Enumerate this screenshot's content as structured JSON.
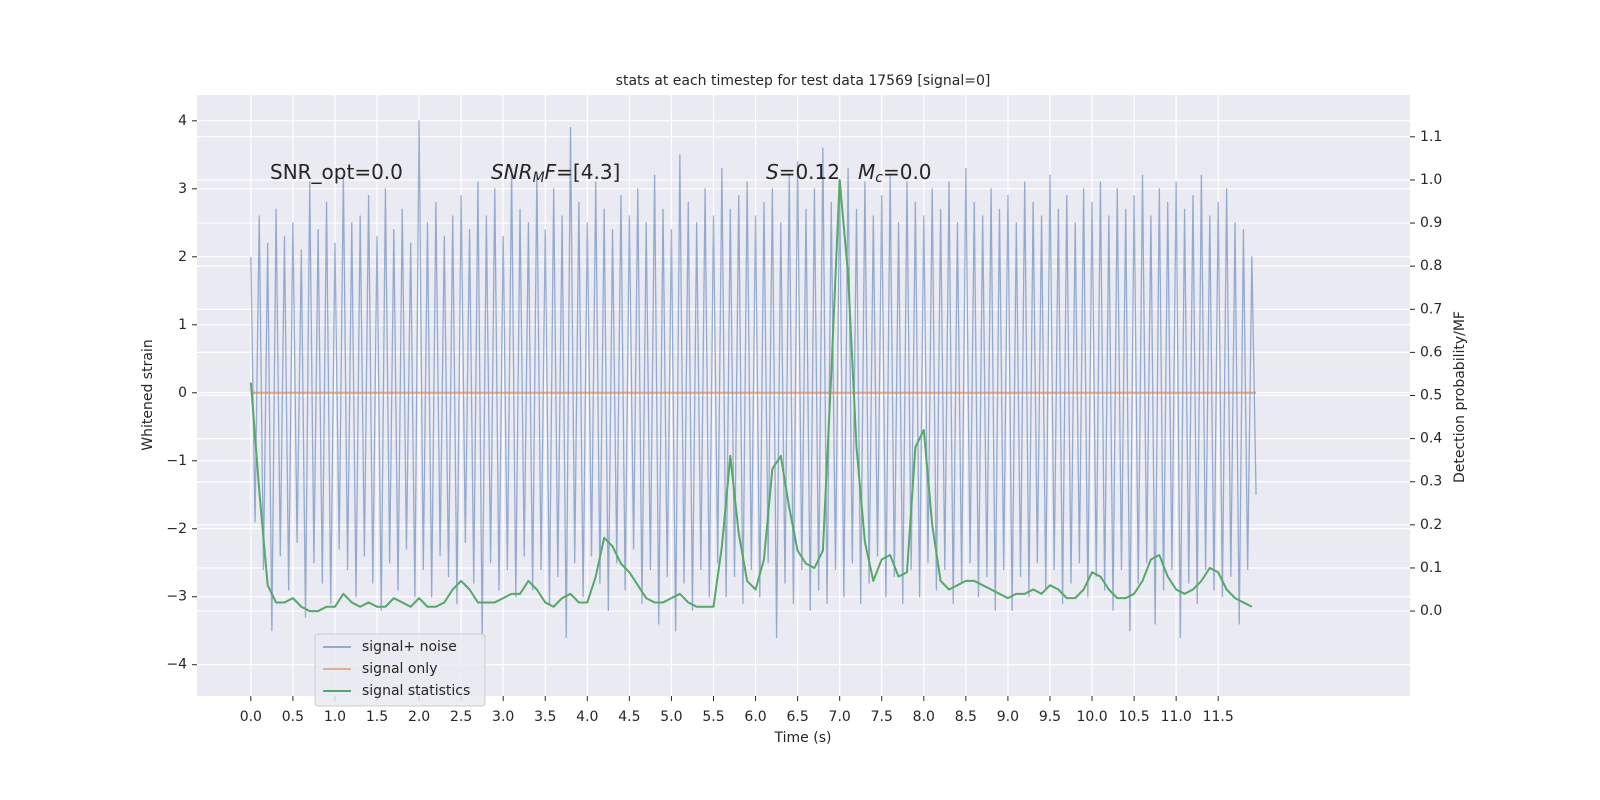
{
  "chart_data": {
    "type": "line",
    "title": "stats at each timestep for test data 17569 [signal=0]",
    "xlabel": "Time (s)",
    "ylabel": "Whitened strain",
    "y2label": "Detection probability/MF",
    "xlim": [
      -0.64,
      13.78
    ],
    "ylim": [
      -4.46,
      4.38
    ],
    "y2lim": [
      -0.197,
      1.197
    ],
    "xticks": [
      {
        "value": 0,
        "label": "0.0"
      },
      {
        "value": 0.5,
        "label": "0.5"
      },
      {
        "value": 1,
        "label": "1.0"
      },
      {
        "value": 1.5,
        "label": "1.5"
      },
      {
        "value": 2,
        "label": "2.0"
      },
      {
        "value": 2.5,
        "label": "2.5"
      },
      {
        "value": 3,
        "label": "3.0"
      },
      {
        "value": 3.5,
        "label": "3.5"
      },
      {
        "value": 4,
        "label": "4.0"
      },
      {
        "value": 4.5,
        "label": "4.5"
      },
      {
        "value": 5,
        "label": "5.0"
      },
      {
        "value": 5.5,
        "label": "5.5"
      },
      {
        "value": 6,
        "label": "6.0"
      },
      {
        "value": 6.5,
        "label": "6.5"
      },
      {
        "value": 7,
        "label": "7.0"
      },
      {
        "value": 7.5,
        "label": "7.5"
      },
      {
        "value": 8,
        "label": "8.0"
      },
      {
        "value": 8.5,
        "label": "8.5"
      },
      {
        "value": 9,
        "label": "9.0"
      },
      {
        "value": 9.5,
        "label": "9.5"
      },
      {
        "value": 10,
        "label": "10.0"
      },
      {
        "value": 10.5,
        "label": "10.5"
      },
      {
        "value": 11,
        "label": "11.0"
      },
      {
        "value": 11.5,
        "label": "11.5"
      }
    ],
    "yticks": [
      {
        "value": -4,
        "label": "−4"
      },
      {
        "value": -3,
        "label": "−3"
      },
      {
        "value": -2,
        "label": "−2"
      },
      {
        "value": -1,
        "label": "−1"
      },
      0,
      1,
      2,
      3,
      4
    ],
    "y2ticks": [
      {
        "value": 0,
        "label": "0.0"
      },
      {
        "value": 0.1,
        "label": "0.1"
      },
      {
        "value": 0.2,
        "label": "0.2"
      },
      {
        "value": 0.3,
        "label": "0.3"
      },
      {
        "value": 0.4,
        "label": "0.4"
      },
      {
        "value": 0.5,
        "label": "0.5"
      },
      {
        "value": 0.6,
        "label": "0.6"
      },
      {
        "value": 0.7,
        "label": "0.7"
      },
      {
        "value": 0.8,
        "label": "0.8"
      },
      {
        "value": 0.9,
        "label": "0.9"
      },
      {
        "value": 1,
        "label": "1.0"
      },
      {
        "value": 1.1,
        "label": "1.1"
      }
    ],
    "grid": true,
    "legend": "lower left",
    "annotations": [
      {
        "parts": [
          "SNR_opt=0.0"
        ]
      },
      {
        "parts": [
          "SNR",
          "M",
          "F",
          "=[4.3]"
        ]
      },
      {
        "parts": [
          "S",
          "=0.12"
        ]
      },
      {
        "parts": [
          "M",
          "c",
          "=0.0"
        ]
      }
    ],
    "series": [
      {
        "name": "signal+ noise",
        "color": "#4c72b0",
        "x": [
          0,
          0.05,
          0.1,
          0.15,
          0.2,
          0.25,
          0.3,
          0.35,
          0.4,
          0.45,
          0.5,
          0.55,
          0.6,
          0.65,
          0.7,
          0.75,
          0.8,
          0.85,
          0.9,
          0.95,
          1,
          1.05,
          1.1,
          1.15,
          1.2,
          1.25,
          1.3,
          1.35,
          1.4,
          1.45,
          1.5,
          1.55,
          1.6,
          1.65,
          1.7,
          1.75,
          1.8,
          1.85,
          1.9,
          1.95,
          2,
          2.05,
          2.1,
          2.15,
          2.2,
          2.25,
          2.3,
          2.35,
          2.4,
          2.45,
          2.5,
          2.55,
          2.6,
          2.65,
          2.7,
          2.75,
          2.8,
          2.85,
          2.9,
          2.95,
          3,
          3.05,
          3.1,
          3.15,
          3.2,
          3.25,
          3.3,
          3.35,
          3.4,
          3.45,
          3.5,
          3.55,
          3.6,
          3.65,
          3.7,
          3.75,
          3.8,
          3.85,
          3.9,
          3.95,
          4,
          4.05,
          4.1,
          4.15,
          4.2,
          4.25,
          4.3,
          4.35,
          4.4,
          4.45,
          4.5,
          4.55,
          4.6,
          4.65,
          4.7,
          4.75,
          4.8,
          4.85,
          4.9,
          4.95,
          5,
          5.05,
          5.1,
          5.15,
          5.2,
          5.25,
          5.3,
          5.35,
          5.4,
          5.45,
          5.5,
          5.55,
          5.6,
          5.65,
          5.7,
          5.75,
          5.8,
          5.85,
          5.9,
          5.95,
          6,
          6.05,
          6.1,
          6.15,
          6.2,
          6.25,
          6.3,
          6.35,
          6.4,
          6.45,
          6.5,
          6.55,
          6.6,
          6.65,
          6.7,
          6.75,
          6.8,
          6.85,
          6.9,
          6.95,
          7,
          7.05,
          7.1,
          7.15,
          7.2,
          7.25,
          7.3,
          7.35,
          7.4,
          7.45,
          7.5,
          7.55,
          7.6,
          7.65,
          7.7,
          7.75,
          7.8,
          7.85,
          7.9,
          7.95,
          8,
          8.05,
          8.1,
          8.15,
          8.2,
          8.25,
          8.3,
          8.35,
          8.4,
          8.45,
          8.5,
          8.55,
          8.6,
          8.65,
          8.7,
          8.75,
          8.8,
          8.85,
          8.9,
          8.95,
          9,
          9.05,
          9.1,
          9.15,
          9.2,
          9.25,
          9.3,
          9.35,
          9.4,
          9.45,
          9.5,
          9.55,
          9.6,
          9.65,
          9.7,
          9.75,
          9.8,
          9.85,
          9.9,
          9.95,
          10,
          10.05,
          10.1,
          10.15,
          10.2,
          10.25,
          10.3,
          10.35,
          10.4,
          10.45,
          10.5,
          10.55,
          10.6,
          10.65,
          10.7,
          10.75,
          10.8,
          10.85,
          10.9,
          10.95,
          11,
          11.05,
          11.1,
          11.15,
          11.2,
          11.25,
          11.3,
          11.35,
          11.4,
          11.45,
          11.5,
          11.55,
          11.6,
          11.65,
          11.7,
          11.75,
          11.8,
          11.85,
          11.9,
          11.95
        ],
        "values": [
          2.0,
          -1.9,
          2.6,
          -2.6,
          2.2,
          -3.5,
          2.7,
          -2.4,
          2.3,
          -2.9,
          2.5,
          -2.2,
          2.1,
          -3.3,
          3.1,
          -2.5,
          2.4,
          -2.8,
          2.8,
          -3.1,
          2.2,
          -2.3,
          3.2,
          -2.6,
          2.5,
          -3.0,
          2.6,
          -2.4,
          2.9,
          -2.8,
          2.3,
          -3.2,
          3.0,
          -2.5,
          2.4,
          -2.9,
          2.7,
          -2.3,
          2.2,
          -3.0,
          4.0,
          -2.6,
          2.5,
          -3.0,
          2.8,
          -2.4,
          2.3,
          -2.7,
          2.6,
          -3.1,
          2.9,
          -2.2,
          2.4,
          -2.8,
          3.1,
          -3.6,
          2.6,
          -2.5,
          3.0,
          -2.9,
          2.3,
          -2.6,
          3.3,
          -3.0,
          2.7,
          -2.4,
          2.5,
          -2.9,
          3.2,
          -2.6,
          2.4,
          -3.1,
          3.0,
          -2.7,
          2.6,
          -3.6,
          3.9,
          -2.5,
          2.8,
          -3.0,
          2.5,
          -2.4,
          3.1,
          -2.8,
          2.7,
          -3.2,
          2.4,
          -2.5,
          2.9,
          -2.9,
          2.6,
          -2.3,
          3.0,
          -3.1,
          2.5,
          -2.6,
          3.2,
          -3.4,
          2.7,
          -2.7,
          2.4,
          -3.5,
          3.5,
          -2.8,
          2.8,
          -3.2,
          2.5,
          -2.6,
          3.0,
          -3.0,
          2.6,
          -2.5,
          3.3,
          -3.0,
          2.7,
          -2.7,
          2.9,
          -3.1,
          3.1,
          -2.6,
          2.6,
          -3.0,
          2.8,
          -2.5,
          3.0,
          -3.6,
          2.5,
          -2.8,
          3.2,
          -3.1,
          3.4,
          -2.6,
          2.7,
          -3.2,
          3.0,
          -2.9,
          3.6,
          -3.1,
          2.8,
          -2.6,
          3.0,
          -3.0,
          3.3,
          -2.5,
          2.7,
          -3.1,
          3.1,
          -2.8,
          2.6,
          -2.4,
          2.9,
          -3.0,
          3.2,
          -2.7,
          2.5,
          -3.1,
          3.1,
          -2.6,
          2.8,
          -3.0,
          2.6,
          -2.5,
          3.0,
          -2.9,
          2.7,
          -2.6,
          3.1,
          -3.1,
          2.5,
          -2.8,
          3.3,
          -2.5,
          2.8,
          -3.0,
          2.6,
          -2.7,
          3.0,
          -3.2,
          2.7,
          -2.6,
          2.9,
          -3.2,
          2.5,
          -2.7,
          3.1,
          -3.0,
          2.8,
          -2.5,
          2.6,
          -2.9,
          3.2,
          -2.6,
          2.7,
          -3.1,
          2.9,
          -2.8,
          2.5,
          -2.5,
          3.0,
          -3.0,
          2.8,
          -2.7,
          3.1,
          -2.9,
          2.6,
          -3.2,
          3.0,
          -2.6,
          2.7,
          -3.5,
          2.9,
          -2.8,
          3.2,
          -2.5,
          2.6,
          -3.4,
          3.0,
          -2.9,
          2.8,
          -2.6,
          3.1,
          -3.6,
          2.7,
          -2.8,
          2.9,
          -3.1,
          3.2,
          -2.6,
          2.6,
          -2.9,
          2.8,
          -3.0,
          3.0,
          -2.7,
          2.5,
          -3.4,
          2.4,
          -2.6,
          2.0,
          -1.5
        ]
      },
      {
        "name": "signal only",
        "color": "#dd8452",
        "x": [
          0,
          11.95
        ],
        "values": [
          0,
          0
        ]
      },
      {
        "name": "signal statistics",
        "color": "#55a868",
        "axis": "y2",
        "x": [
          0,
          0.1,
          0.2,
          0.3,
          0.4,
          0.5,
          0.6,
          0.7,
          0.8,
          0.9,
          1,
          1.1,
          1.2,
          1.3,
          1.4,
          1.5,
          1.6,
          1.7,
          1.8,
          1.9,
          2,
          2.1,
          2.2,
          2.3,
          2.4,
          2.5,
          2.6,
          2.7,
          2.8,
          2.9,
          3,
          3.1,
          3.2,
          3.3,
          3.4,
          3.5,
          3.6,
          3.7,
          3.8,
          3.9,
          4,
          4.1,
          4.2,
          4.3,
          4.4,
          4.5,
          4.6,
          4.7,
          4.8,
          4.9,
          5,
          5.1,
          5.2,
          5.3,
          5.4,
          5.5,
          5.6,
          5.7,
          5.8,
          5.9,
          6,
          6.1,
          6.2,
          6.3,
          6.4,
          6.5,
          6.6,
          6.7,
          6.8,
          6.9,
          7,
          7.1,
          7.2,
          7.3,
          7.4,
          7.5,
          7.6,
          7.7,
          7.8,
          7.9,
          8,
          8.1,
          8.2,
          8.3,
          8.4,
          8.5,
          8.6,
          8.7,
          8.8,
          8.9,
          9,
          9.1,
          9.2,
          9.3,
          9.4,
          9.5,
          9.6,
          9.7,
          9.8,
          9.9,
          10,
          10.1,
          10.2,
          10.3,
          10.4,
          10.5,
          10.6,
          10.7,
          10.8,
          10.9,
          11,
          11.1,
          11.2,
          11.3,
          11.4,
          11.5,
          11.6,
          11.7,
          11.8,
          11.9
        ],
        "values": [
          0.53,
          0.28,
          0.06,
          0.02,
          0.02,
          0.03,
          0.01,
          0.0,
          0.0,
          0.01,
          0.01,
          0.04,
          0.02,
          0.01,
          0.02,
          0.01,
          0.01,
          0.03,
          0.02,
          0.01,
          0.03,
          0.01,
          0.01,
          0.02,
          0.05,
          0.07,
          0.05,
          0.02,
          0.02,
          0.02,
          0.03,
          0.04,
          0.04,
          0.07,
          0.05,
          0.02,
          0.01,
          0.03,
          0.04,
          0.02,
          0.02,
          0.08,
          0.17,
          0.15,
          0.11,
          0.09,
          0.06,
          0.03,
          0.02,
          0.02,
          0.03,
          0.04,
          0.02,
          0.01,
          0.01,
          0.01,
          0.15,
          0.36,
          0.18,
          0.07,
          0.05,
          0.12,
          0.33,
          0.36,
          0.24,
          0.14,
          0.11,
          0.1,
          0.14,
          0.55,
          1.0,
          0.78,
          0.38,
          0.16,
          0.07,
          0.12,
          0.13,
          0.08,
          0.09,
          0.38,
          0.42,
          0.2,
          0.07,
          0.05,
          0.06,
          0.07,
          0.07,
          0.06,
          0.05,
          0.04,
          0.03,
          0.04,
          0.04,
          0.05,
          0.04,
          0.06,
          0.05,
          0.03,
          0.03,
          0.05,
          0.09,
          0.08,
          0.05,
          0.03,
          0.03,
          0.04,
          0.07,
          0.12,
          0.13,
          0.08,
          0.05,
          0.04,
          0.05,
          0.07,
          0.1,
          0.09,
          0.05,
          0.03,
          0.02,
          0.01
        ]
      }
    ]
  }
}
